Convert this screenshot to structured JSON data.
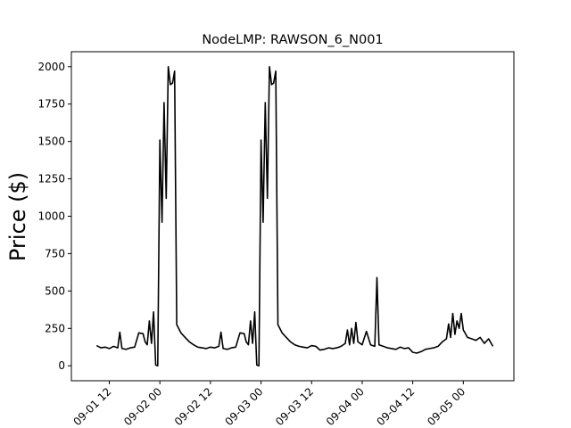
{
  "chart_data": {
    "type": "line",
    "title": "NodeLMP: RAWSON_6_N001",
    "xlabel": "",
    "ylabel": "Price ($)",
    "x_axis": {
      "kind": "datetime",
      "range": [
        "2020-09-01 03:00",
        "2020-09-05 12:00"
      ],
      "tick_values": [
        "2020-09-01 12:00",
        "2020-09-02 00:00",
        "2020-09-02 12:00",
        "2020-09-03 00:00",
        "2020-09-03 12:00",
        "2020-09-04 00:00",
        "2020-09-04 12:00",
        "2020-09-05 00:00"
      ],
      "tick_labels": [
        "09-01 12",
        "09-02 00",
        "09-02 12",
        "09-03 00",
        "09-03 12",
        "09-04 00",
        "09-04 12",
        "09-05 00"
      ]
    },
    "y_axis": {
      "range": [
        -100,
        2100
      ],
      "ticks": [
        0,
        250,
        500,
        750,
        1000,
        1250,
        1500,
        1750,
        2000
      ],
      "tick_labels": [
        "0",
        "250",
        "500",
        "750",
        "1000",
        "1250",
        "1500",
        "1750",
        "2000"
      ]
    },
    "grid": false,
    "legend": "none",
    "series": [
      {
        "color": "#000000",
        "points": [
          [
            "2020-09-01 09:00",
            135
          ],
          [
            "2020-09-01 10:00",
            120
          ],
          [
            "2020-09-01 11:00",
            125
          ],
          [
            "2020-09-01 12:00",
            115
          ],
          [
            "2020-09-01 13:00",
            130
          ],
          [
            "2020-09-01 14:00",
            120
          ],
          [
            "2020-09-01 14:30",
            225
          ],
          [
            "2020-09-01 15:00",
            115
          ],
          [
            "2020-09-01 16:00",
            110
          ],
          [
            "2020-09-01 17:00",
            120
          ],
          [
            "2020-09-01 18:00",
            125
          ],
          [
            "2020-09-01 19:00",
            220
          ],
          [
            "2020-09-01 20:00",
            215
          ],
          [
            "2020-09-01 20:30",
            160
          ],
          [
            "2020-09-01 21:00",
            140
          ],
          [
            "2020-09-01 21:30",
            300
          ],
          [
            "2020-09-01 22:00",
            150
          ],
          [
            "2020-09-01 22:30",
            360
          ],
          [
            "2020-09-01 23:00",
            5
          ],
          [
            "2020-09-01 23:30",
            0
          ],
          [
            "2020-09-02 00:00",
            1510
          ],
          [
            "2020-09-02 00:30",
            960
          ],
          [
            "2020-09-02 01:00",
            1760
          ],
          [
            "2020-09-02 01:30",
            1120
          ],
          [
            "2020-09-02 02:00",
            2000
          ],
          [
            "2020-09-02 02:30",
            1880
          ],
          [
            "2020-09-02 03:00",
            1890
          ],
          [
            "2020-09-02 03:30",
            1970
          ],
          [
            "2020-09-02 04:00",
            275
          ],
          [
            "2020-09-02 05:00",
            220
          ],
          [
            "2020-09-02 06:00",
            190
          ],
          [
            "2020-09-02 07:00",
            160
          ],
          [
            "2020-09-02 08:00",
            140
          ],
          [
            "2020-09-02 09:00",
            125
          ],
          [
            "2020-09-02 10:00",
            120
          ],
          [
            "2020-09-02 11:00",
            115
          ],
          [
            "2020-09-02 12:00",
            125
          ],
          [
            "2020-09-02 13:00",
            120
          ],
          [
            "2020-09-02 14:00",
            130
          ],
          [
            "2020-09-02 14:30",
            225
          ],
          [
            "2020-09-02 15:00",
            115
          ],
          [
            "2020-09-02 16:00",
            110
          ],
          [
            "2020-09-02 17:00",
            120
          ],
          [
            "2020-09-02 18:00",
            125
          ],
          [
            "2020-09-02 19:00",
            220
          ],
          [
            "2020-09-02 20:00",
            215
          ],
          [
            "2020-09-02 20:30",
            160
          ],
          [
            "2020-09-02 21:00",
            140
          ],
          [
            "2020-09-02 21:30",
            300
          ],
          [
            "2020-09-02 22:00",
            150
          ],
          [
            "2020-09-02 22:30",
            360
          ],
          [
            "2020-09-02 23:00",
            5
          ],
          [
            "2020-09-02 23:30",
            0
          ],
          [
            "2020-09-03 00:00",
            1510
          ],
          [
            "2020-09-03 00:30",
            960
          ],
          [
            "2020-09-03 01:00",
            1760
          ],
          [
            "2020-09-03 01:30",
            1120
          ],
          [
            "2020-09-03 02:00",
            2000
          ],
          [
            "2020-09-03 02:30",
            1880
          ],
          [
            "2020-09-03 03:00",
            1890
          ],
          [
            "2020-09-03 03:30",
            1970
          ],
          [
            "2020-09-03 04:00",
            275
          ],
          [
            "2020-09-03 05:00",
            220
          ],
          [
            "2020-09-03 06:00",
            190
          ],
          [
            "2020-09-03 07:00",
            160
          ],
          [
            "2020-09-03 08:00",
            140
          ],
          [
            "2020-09-03 09:00",
            130
          ],
          [
            "2020-09-03 10:00",
            125
          ],
          [
            "2020-09-03 11:00",
            120
          ],
          [
            "2020-09-03 12:00",
            135
          ],
          [
            "2020-09-03 13:00",
            130
          ],
          [
            "2020-09-03 14:00",
            105
          ],
          [
            "2020-09-03 15:00",
            110
          ],
          [
            "2020-09-03 16:00",
            120
          ],
          [
            "2020-09-03 17:00",
            115
          ],
          [
            "2020-09-03 18:00",
            120
          ],
          [
            "2020-09-03 19:00",
            130
          ],
          [
            "2020-09-03 20:00",
            150
          ],
          [
            "2020-09-03 20:30",
            240
          ],
          [
            "2020-09-03 21:00",
            140
          ],
          [
            "2020-09-03 21:30",
            250
          ],
          [
            "2020-09-03 22:00",
            150
          ],
          [
            "2020-09-03 22:30",
            290
          ],
          [
            "2020-09-03 23:00",
            160
          ],
          [
            "2020-09-04 00:00",
            140
          ],
          [
            "2020-09-04 01:00",
            230
          ],
          [
            "2020-09-04 02:00",
            140
          ],
          [
            "2020-09-04 03:00",
            130
          ],
          [
            "2020-09-04 03:30",
            590
          ],
          [
            "2020-09-04 04:00",
            140
          ],
          [
            "2020-09-04 05:00",
            130
          ],
          [
            "2020-09-04 06:00",
            120
          ],
          [
            "2020-09-04 07:00",
            115
          ],
          [
            "2020-09-04 08:00",
            110
          ],
          [
            "2020-09-04 09:00",
            125
          ],
          [
            "2020-09-04 10:00",
            115
          ],
          [
            "2020-09-04 11:00",
            120
          ],
          [
            "2020-09-04 12:00",
            90
          ],
          [
            "2020-09-04 13:00",
            85
          ],
          [
            "2020-09-04 14:00",
            95
          ],
          [
            "2020-09-04 15:00",
            110
          ],
          [
            "2020-09-04 16:00",
            115
          ],
          [
            "2020-09-04 17:00",
            120
          ],
          [
            "2020-09-04 18:00",
            130
          ],
          [
            "2020-09-04 19:00",
            160
          ],
          [
            "2020-09-04 20:00",
            180
          ],
          [
            "2020-09-04 20:30",
            280
          ],
          [
            "2020-09-04 21:00",
            190
          ],
          [
            "2020-09-04 21:30",
            350
          ],
          [
            "2020-09-04 22:00",
            210
          ],
          [
            "2020-09-04 22:30",
            300
          ],
          [
            "2020-09-04 23:00",
            250
          ],
          [
            "2020-09-04 23:30",
            350
          ],
          [
            "2020-09-05 00:00",
            240
          ],
          [
            "2020-09-05 01:00",
            190
          ],
          [
            "2020-09-05 02:00",
            180
          ],
          [
            "2020-09-05 03:00",
            170
          ],
          [
            "2020-09-05 04:00",
            190
          ],
          [
            "2020-09-05 05:00",
            150
          ],
          [
            "2020-09-05 06:00",
            180
          ],
          [
            "2020-09-05 07:00",
            130
          ]
        ]
      }
    ]
  }
}
